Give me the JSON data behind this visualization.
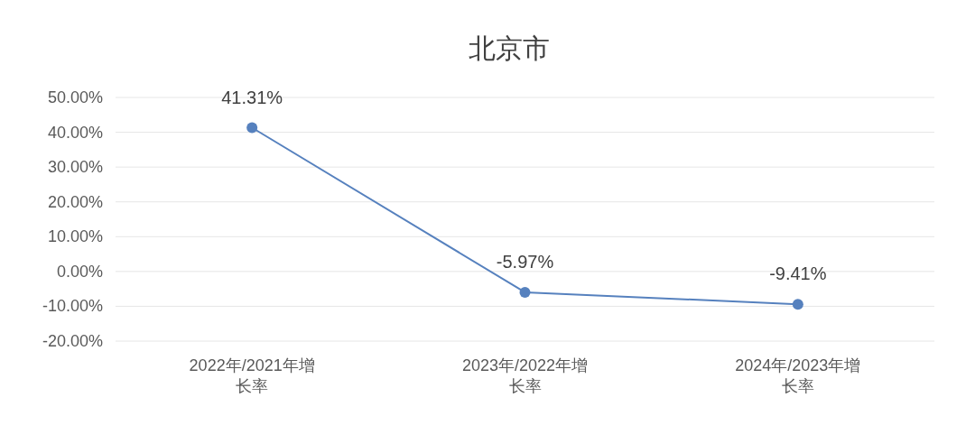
{
  "chart_data": {
    "type": "line",
    "title": "北京市",
    "categories": [
      "2022年/2021年增长率",
      "2023年/2022年增长率",
      "2024年/2023年增长率"
    ],
    "series": [
      {
        "color": "#5681be",
        "values": [
          41.31,
          -5.97,
          -9.41
        ],
        "value_labels": [
          "41.31%",
          "-5.97%",
          "-9.41%"
        ]
      }
    ],
    "ylim": [
      -20,
      50
    ],
    "yticks": [
      {
        "value": -20,
        "label": "-20.00%"
      },
      {
        "value": -10,
        "label": "-10.00%"
      },
      {
        "value": 0,
        "label": "0.00%"
      },
      {
        "value": 10,
        "label": "10.00%"
      },
      {
        "value": 20,
        "label": "20.00%"
      },
      {
        "value": 30,
        "label": "30.00%"
      },
      {
        "value": 40,
        "label": "40.00%"
      },
      {
        "value": 50,
        "label": "50.00%"
      }
    ],
    "grid": "y",
    "marker": "circle",
    "line_style": "solid"
  }
}
